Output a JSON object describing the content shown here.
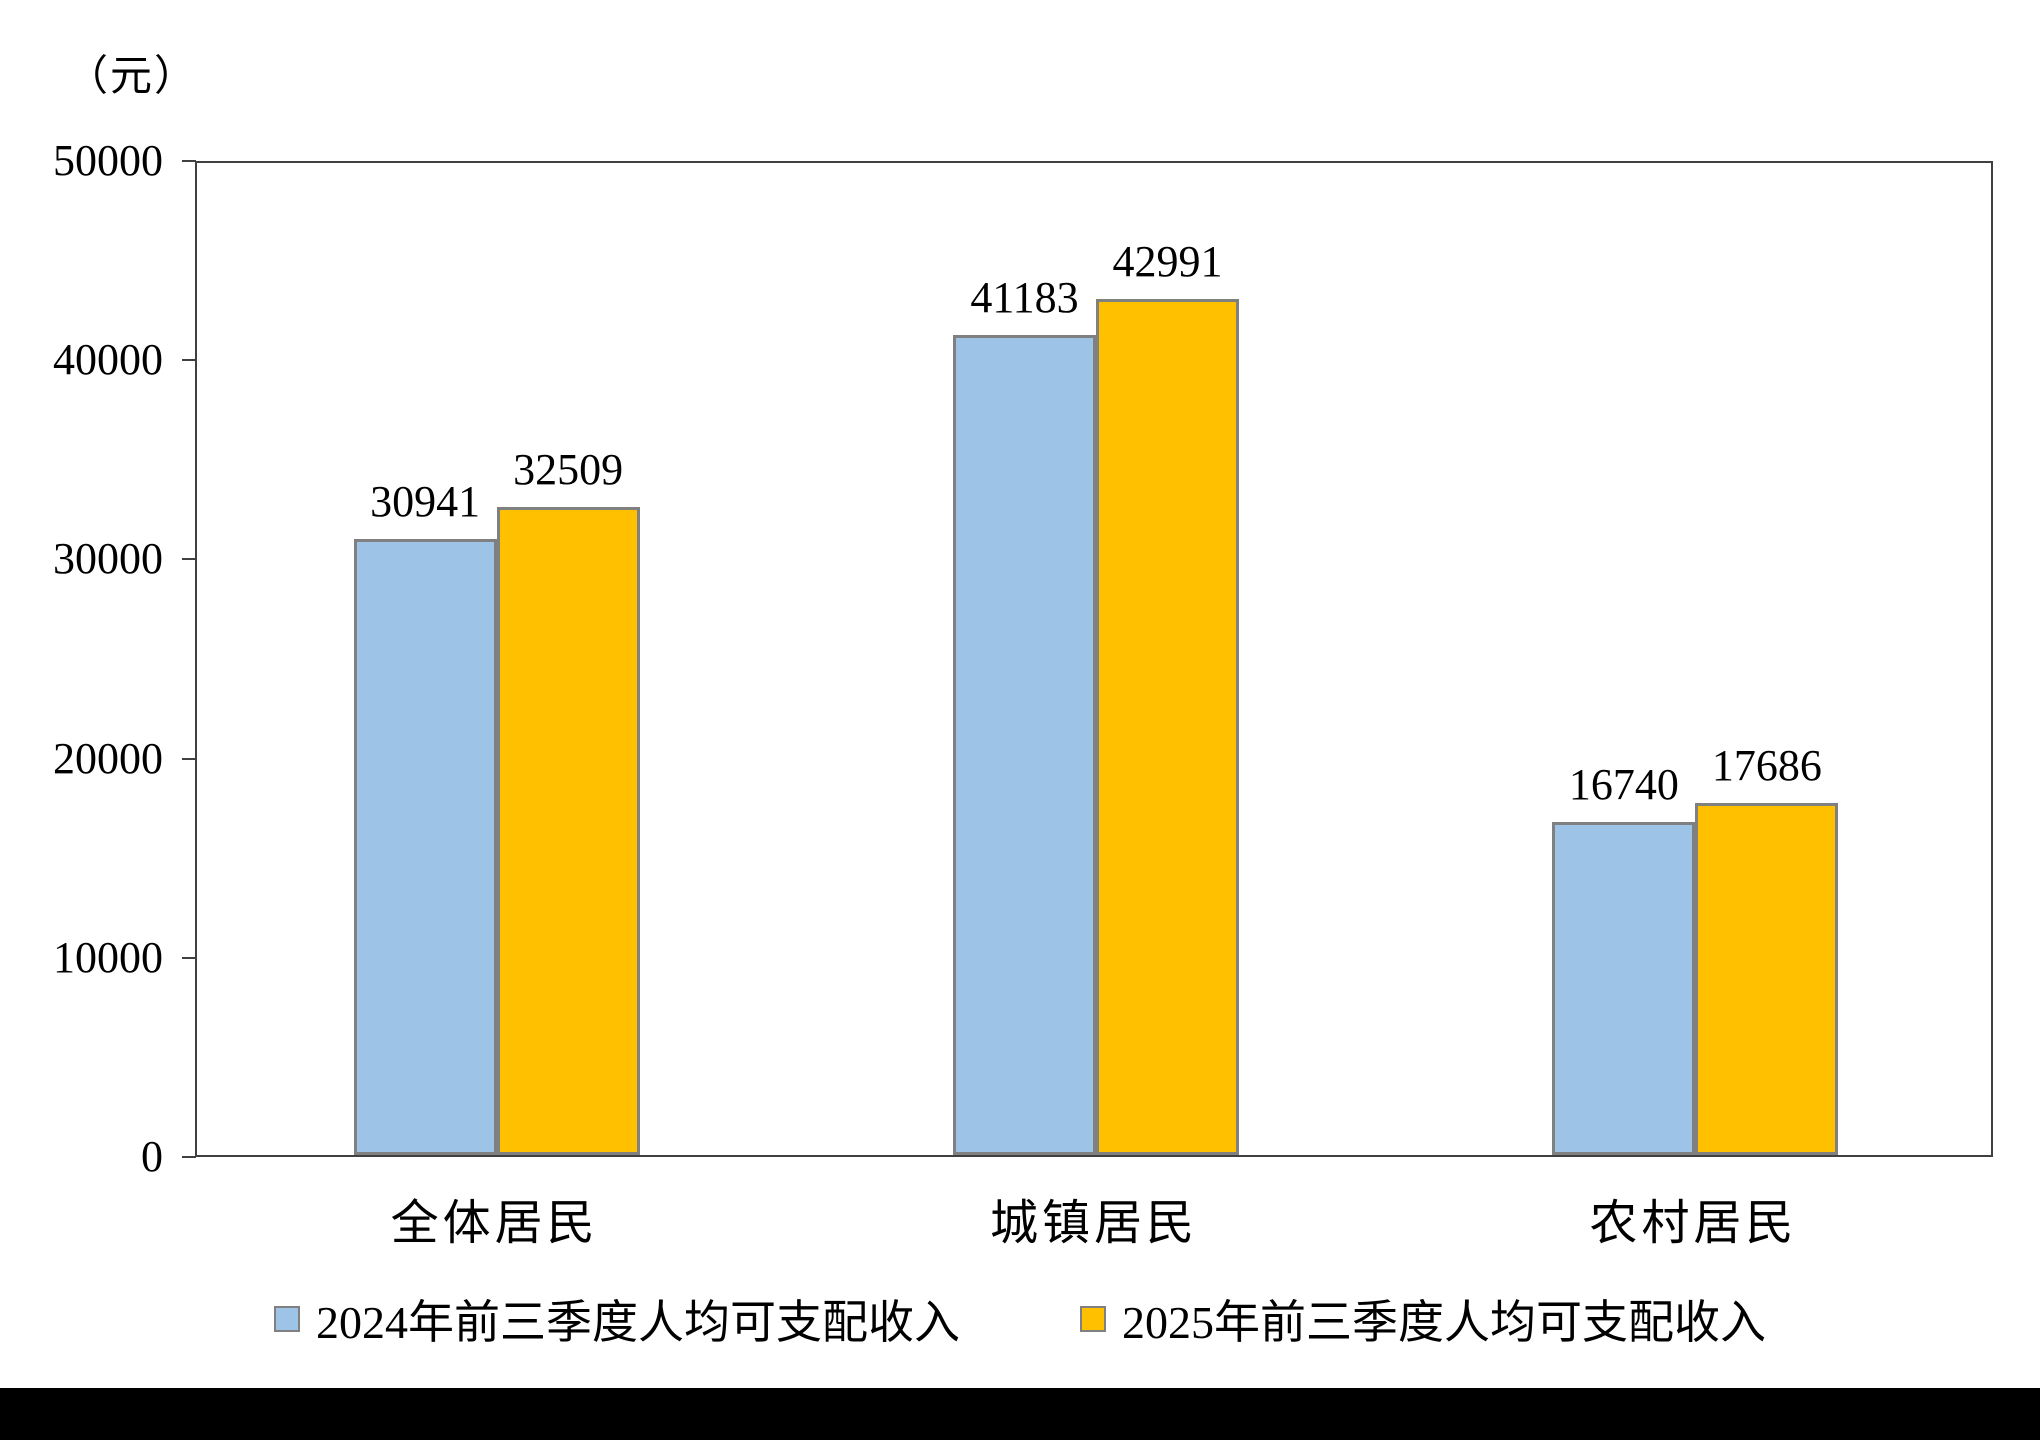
{
  "page": {
    "background": "#ffffff",
    "bottom_strip_color": "#000000"
  },
  "chart_data": {
    "type": "bar",
    "title": "",
    "unit_label": "（元）",
    "categories": [
      "全体居民",
      "城镇居民",
      "农村居民"
    ],
    "series": [
      {
        "name": "2024年前三季度人均可支配收入",
        "color": "#9DC3E6",
        "border_color": "#808080",
        "values": [
          30941,
          41183,
          16740
        ]
      },
      {
        "name": "2025年前三季度人均可支配收入",
        "color": "#FFC000",
        "border_color": "#808080",
        "values": [
          32509,
          42991,
          17686
        ]
      }
    ],
    "ylim": [
      0,
      50000
    ],
    "yticks": [
      50000,
      40000,
      30000,
      20000,
      10000,
      0
    ],
    "grid": false,
    "legend_position": "bottom"
  }
}
